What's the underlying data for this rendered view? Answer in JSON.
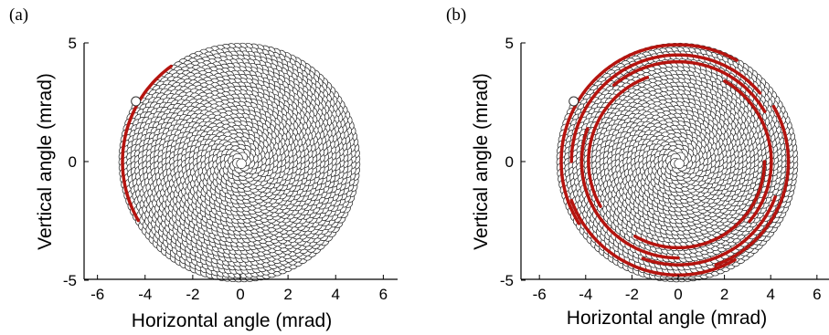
{
  "chart_data": [
    {
      "panel_label": "(a)",
      "type": "scatter",
      "plot": "spiral scan of overlapping circular beam footprints",
      "xlabel": "Horizontal angle (mrad)",
      "ylabel": "Vertical angle (mrad)",
      "xlim": [
        -6.6,
        6.6
      ],
      "ylim": [
        -5,
        5
      ],
      "xticks": [
        "-6",
        "-4",
        "-2",
        "0",
        "2",
        "4",
        "6"
      ],
      "yticks": [
        "5",
        "0",
        "-5"
      ],
      "spiral": {
        "outer_radius": 4.95,
        "turns": 30,
        "footprint_radius": 0.18,
        "start_angle_deg": 150
      },
      "highlight_color": "#b5140f",
      "highlight": [
        {
          "start_deg": 150,
          "end_deg": 235
        }
      ],
      "grid": false,
      "legend": "none"
    },
    {
      "panel_label": "(b)",
      "type": "scatter",
      "plot": "spiral scan of overlapping circular beam footprints",
      "xlabel": "Horizontal angle (mrad)",
      "ylabel": "Vertical angle (mrad)",
      "xlim": [
        -6.6,
        6.6
      ],
      "ylim": [
        -5,
        5
      ],
      "xticks": [
        "-6",
        "-4",
        "-2",
        "0",
        "2",
        "4",
        "6"
      ],
      "yticks": [
        "5",
        "0",
        "-5"
      ],
      "spiral": {
        "outer_radius": 4.95,
        "turns": 30,
        "footprint_radius": 0.18,
        "start_angle_deg": 150
      },
      "highlight_color": "#b5140f",
      "highlight": [
        {
          "start_deg": 148,
          "end_deg": 300
        },
        {
          "start_deg": 60,
          "end_deg": 160
        },
        {
          "start_deg": 330,
          "end_deg": 430
        },
        {
          "start_deg": 180,
          "end_deg": 320
        },
        {
          "start_deg": 20,
          "end_deg": 110
        },
        {
          "start_deg": 230,
          "end_deg": 330
        },
        {
          "start_deg": 90,
          "end_deg": 200
        },
        {
          "start_deg": 300,
          "end_deg": 400
        },
        {
          "start_deg": 150,
          "end_deg": 250
        },
        {
          "start_deg": 0,
          "end_deg": 120
        }
      ],
      "grid": false,
      "legend": "none"
    }
  ]
}
